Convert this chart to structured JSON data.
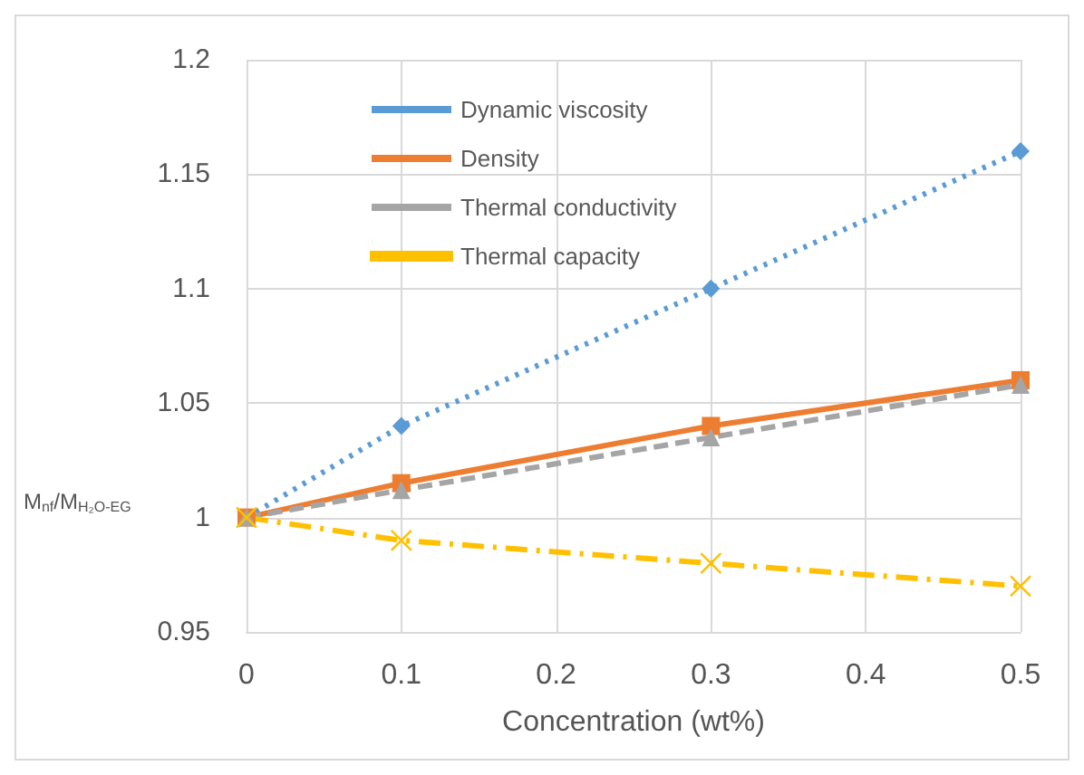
{
  "chart_data": {
    "type": "line",
    "xlabel": "Concentration (wt%)",
    "ylabel": "M$_{nf}$/M$_{H₂O-EG}$",
    "x": [
      0,
      0.1,
      0.3,
      0.5
    ],
    "series": [
      {
        "name": "Dynamic viscosity",
        "color": "#5b9bd5",
        "values": [
          1,
          1.04,
          1.1,
          1.16
        ],
        "marker": "diamond",
        "line_style": "dotted"
      },
      {
        "name": "Density",
        "color": "#ed7d31",
        "values": [
          1,
          1.015,
          1.04,
          1.06
        ],
        "marker": "square",
        "line_style": "solid"
      },
      {
        "name": "Thermal conductivity",
        "color": "#a5a5a5",
        "values": [
          1,
          1.012,
          1.035,
          1.058
        ],
        "marker": "triangle",
        "line_style": "dashed"
      },
      {
        "name": "Thermal capacity",
        "color": "#ffc000",
        "values": [
          1,
          0.99,
          0.98,
          0.97
        ],
        "marker": "cross",
        "line_style": "dashdot"
      }
    ],
    "xlim": [
      0,
      0.5
    ],
    "xticks": [
      0,
      0.1,
      0.2,
      0.3,
      0.4,
      0.5
    ],
    "ylim": [
      0.95,
      1.2
    ],
    "yticks": [
      0.95,
      1,
      1.05,
      1.1,
      1.15,
      1.2
    ],
    "grid": true,
    "legend": "top left"
  }
}
